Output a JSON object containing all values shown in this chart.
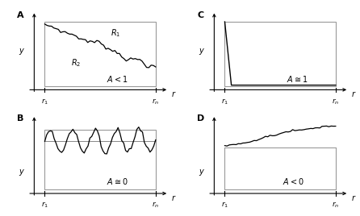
{
  "panel_labels": [
    "A",
    "B",
    "C",
    "D"
  ],
  "annotation_A": [
    "$R_1$",
    "$R_2$",
    "$A < 1$"
  ],
  "annotation_B": "$A \\cong 0$",
  "annotation_C": "$A \\cong 1$",
  "annotation_D": "$A < 0$",
  "xlabel": "r",
  "ylabel": "y",
  "x_tick_labels": [
    "r_1",
    "r_n"
  ],
  "bg_color": "#ffffff",
  "line_color": "#000000",
  "box_color": "#999999"
}
